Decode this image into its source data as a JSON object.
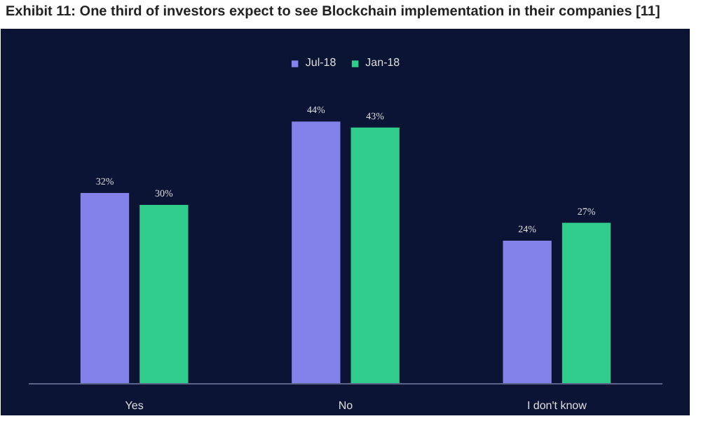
{
  "chart_data": {
    "type": "bar",
    "title": "Exhibit 11: One third of investors expect to see Blockchain implementation in their companies [11]",
    "categories": [
      "Yes",
      "No",
      "I don't know"
    ],
    "series": [
      {
        "name": "Jul-18",
        "color": "#8282ea",
        "values": [
          32,
          44,
          24
        ],
        "value_labels": [
          "32%",
          "44%",
          "24%"
        ]
      },
      {
        "name": "Jan-18",
        "color": "#2fcc8b",
        "values": [
          30,
          43,
          27
        ],
        "value_labels": [
          "30%",
          "43%",
          "27%"
        ]
      }
    ],
    "legend": "top",
    "grid": false
  }
}
